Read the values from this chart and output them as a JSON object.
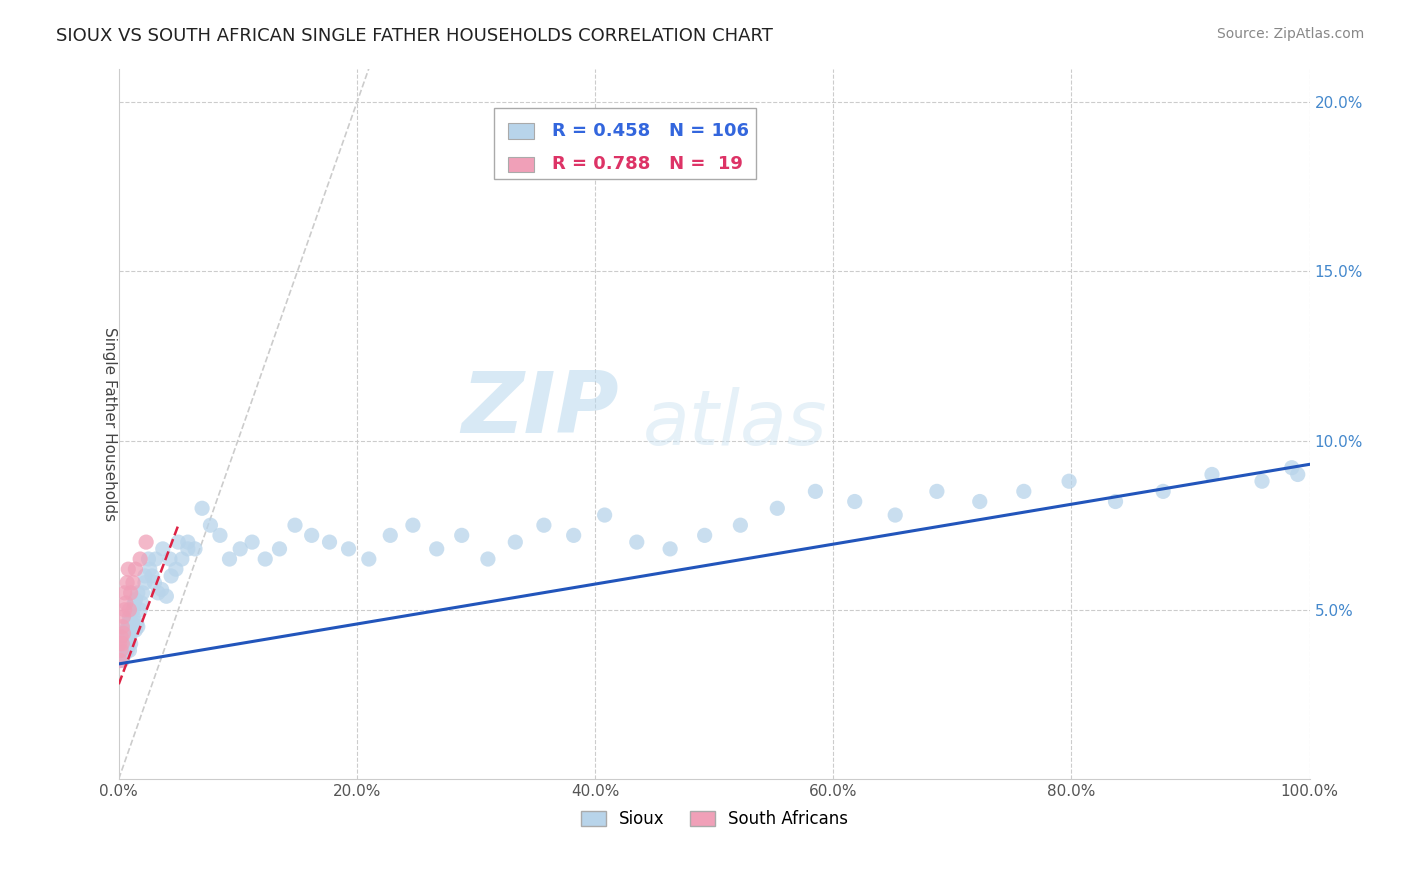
{
  "title": "SIOUX VS SOUTH AFRICAN SINGLE FATHER HOUSEHOLDS CORRELATION CHART",
  "source": "Source: ZipAtlas.com",
  "ylabel": "Single Father Households",
  "watermark": "ZIPAtlas",
  "xlim": [
    0,
    1.0
  ],
  "ylim": [
    0,
    0.21
  ],
  "xticks": [
    0.0,
    0.2,
    0.4,
    0.6,
    0.8,
    1.0
  ],
  "xtick_labels": [
    "0.0%",
    "20.0%",
    "40.0%",
    "60.0%",
    "80.0%",
    "100.0%"
  ],
  "yticks": [
    0.0,
    0.05,
    0.1,
    0.15,
    0.2
  ],
  "ytick_labels": [
    "",
    "5.0%",
    "10.0%",
    "15.0%",
    "20.0%"
  ],
  "sioux_R": 0.458,
  "sioux_N": 106,
  "sa_R": 0.788,
  "sa_N": 19,
  "sioux_color": "#b8d4ea",
  "sioux_line_color": "#2255bb",
  "sa_color": "#f0a0b8",
  "sa_line_color": "#dd2244",
  "background_color": "#ffffff",
  "grid_color": "#cccccc",
  "sioux_x": [
    0.002,
    0.003,
    0.003,
    0.004,
    0.004,
    0.005,
    0.005,
    0.005,
    0.006,
    0.006,
    0.006,
    0.007,
    0.007,
    0.008,
    0.008,
    0.009,
    0.009,
    0.01,
    0.01,
    0.011,
    0.012,
    0.013,
    0.014,
    0.015,
    0.016,
    0.018,
    0.02,
    0.022,
    0.025,
    0.028,
    0.03,
    0.033,
    0.036,
    0.04,
    0.044,
    0.048,
    0.053,
    0.058,
    0.064,
    0.07,
    0.077,
    0.085,
    0.093,
    0.102,
    0.112,
    0.123,
    0.135,
    0.148,
    0.162,
    0.177,
    0.193,
    0.21,
    0.228,
    0.247,
    0.267,
    0.288,
    0.31,
    0.333,
    0.357,
    0.382,
    0.408,
    0.435,
    0.463,
    0.492,
    0.522,
    0.553,
    0.585,
    0.618,
    0.652,
    0.687,
    0.723,
    0.76,
    0.798,
    0.837,
    0.877,
    0.918,
    0.96,
    0.985,
    0.99,
    0.001,
    0.001,
    0.002,
    0.002,
    0.003,
    0.003,
    0.004,
    0.004,
    0.005,
    0.005,
    0.006,
    0.007,
    0.008,
    0.009,
    0.01,
    0.011,
    0.012,
    0.014,
    0.016,
    0.019,
    0.022,
    0.026,
    0.031,
    0.037,
    0.043,
    0.05,
    0.058
  ],
  "sioux_y": [
    0.04,
    0.035,
    0.04,
    0.038,
    0.042,
    0.04,
    0.037,
    0.043,
    0.038,
    0.041,
    0.044,
    0.038,
    0.041,
    0.04,
    0.044,
    0.038,
    0.042,
    0.04,
    0.043,
    0.046,
    0.048,
    0.052,
    0.044,
    0.046,
    0.045,
    0.05,
    0.055,
    0.06,
    0.065,
    0.06,
    0.058,
    0.055,
    0.056,
    0.054,
    0.06,
    0.062,
    0.065,
    0.07,
    0.068,
    0.08,
    0.075,
    0.072,
    0.065,
    0.068,
    0.07,
    0.065,
    0.068,
    0.075,
    0.072,
    0.07,
    0.068,
    0.065,
    0.072,
    0.075,
    0.068,
    0.072,
    0.065,
    0.07,
    0.075,
    0.072,
    0.078,
    0.07,
    0.068,
    0.072,
    0.075,
    0.08,
    0.085,
    0.082,
    0.078,
    0.085,
    0.082,
    0.085,
    0.088,
    0.082,
    0.085,
    0.09,
    0.088,
    0.092,
    0.09,
    0.035,
    0.038,
    0.037,
    0.04,
    0.038,
    0.041,
    0.039,
    0.042,
    0.04,
    0.043,
    0.041,
    0.044,
    0.046,
    0.048,
    0.044,
    0.046,
    0.05,
    0.053,
    0.055,
    0.052,
    0.058,
    0.062,
    0.065,
    0.068,
    0.065,
    0.07,
    0.068
  ],
  "sa_x": [
    0.001,
    0.001,
    0.002,
    0.002,
    0.003,
    0.003,
    0.004,
    0.004,
    0.005,
    0.005,
    0.006,
    0.007,
    0.008,
    0.009,
    0.01,
    0.012,
    0.014,
    0.018,
    0.023
  ],
  "sa_y": [
    0.035,
    0.04,
    0.038,
    0.042,
    0.04,
    0.045,
    0.043,
    0.048,
    0.05,
    0.055,
    0.052,
    0.058,
    0.062,
    0.05,
    0.055,
    0.058,
    0.062,
    0.065,
    0.07
  ],
  "sioux_line_x": [
    0.0,
    1.0
  ],
  "sioux_line_y": [
    0.034,
    0.093
  ],
  "sa_line_x": [
    0.0,
    0.05
  ],
  "sa_line_y": [
    0.028,
    0.075
  ],
  "diag_line_x": [
    0.0,
    0.21
  ],
  "diag_line_y": [
    0.0,
    0.21
  ]
}
